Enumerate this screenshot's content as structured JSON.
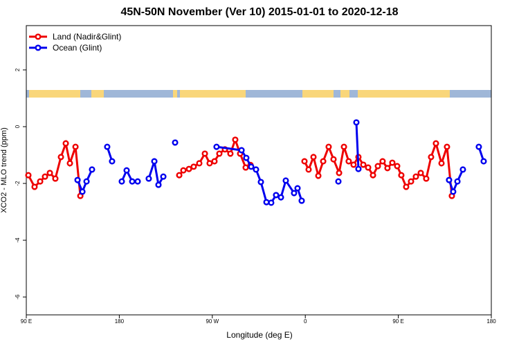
{
  "chart_data": {
    "type": "line",
    "title": "45N-50N November (Ver 10)   2015-01-01 to 2020-12-18",
    "x_label": "Longitude (deg E)",
    "y_label": "XCO2 - MLO trend (ppm)",
    "xlim": [
      90,
      540
    ],
    "xticks": [
      {
        "value": 90,
        "label": "90 E"
      },
      180,
      {
        "value": 270,
        "label": "90 W"
      },
      {
        "value": 360,
        "label": "0"
      },
      {
        "value": 450,
        "label": "90 E"
      },
      {
        "value": 540,
        "label": "180"
      }
    ],
    "ylim": [
      -6.63,
      3.56
    ],
    "yticks": [
      -6,
      -4,
      -2,
      0,
      2
    ],
    "legend": "top-left",
    "series": [
      {
        "name": "Land (Nadir&Glint)",
        "color": "#ee0000",
        "x": [
          92.0,
          98.0,
          103.4,
          108.1,
          112.8,
          118.1,
          123.5,
          128.2,
          132.2,
          137.6,
          142.3,
          null,
          238.0,
          242.0,
          247.4,
          252.0,
          257.4,
          262.8,
          267.4,
          272.1,
          276.8,
          282.2,
          287.5,
          292.2,
          296.9,
          302.3,
          307.0,
          null,
          359.2,
          363.2,
          367.9,
          372.6,
          377.3,
          382.6,
          387.3,
          392.7,
          397.4,
          402.0,
          406.7,
          411.4,
          416.1,
          420.8,
          425.5,
          430.2,
          434.8,
          439.5,
          444.2,
          448.9,
          452.9,
          457.6,
          462.3,
          467.0,
          471.7,
          477.0,
          481.7,
          486.4,
          491.8,
          497.1,
          501.8
        ],
        "values": [
          -1.71,
          -2.12,
          -1.93,
          -1.76,
          -1.63,
          -1.83,
          -1.07,
          -0.59,
          -1.29,
          -0.71,
          -2.44,
          null,
          -1.71,
          -1.54,
          -1.49,
          -1.41,
          -1.29,
          -0.95,
          -1.29,
          -1.22,
          -0.95,
          -0.8,
          -0.95,
          -0.46,
          -0.95,
          -1.44,
          -1.35,
          null,
          -1.22,
          -1.51,
          -1.07,
          -1.73,
          -1.22,
          -0.71,
          -1.15,
          -1.63,
          -0.71,
          -1.22,
          -1.34,
          -1.07,
          -1.34,
          -1.44,
          -1.71,
          -1.39,
          -1.22,
          -1.46,
          -1.27,
          -1.39,
          -1.71,
          -2.12,
          -1.93,
          -1.76,
          -1.63,
          -1.83,
          -1.07,
          -0.59,
          -1.29,
          -0.71,
          -2.44
        ]
      },
      {
        "name": "Ocean (Glint)",
        "color": "#0000ee",
        "x": [
          139.6,
          144.3,
          148.3,
          153.6,
          null,
          168.3,
          173.0,
          null,
          182.4,
          187.1,
          192.5,
          197.8,
          null,
          208.5,
          213.9,
          217.9,
          222.6,
          null,
          234.0,
          null,
          274.1,
          298.3,
          302.9,
          307.6,
          312.3,
          317.0,
          322.4,
          327.0,
          331.7,
          336.4,
          341.1,
          349.1,
          352.5,
          356.5,
          null,
          392.0,
          null,
          409.4,
          411.4,
          null,
          499.1,
          503.1,
          507.2,
          512.5,
          null,
          527.9,
          532.6
        ],
        "values": [
          -1.88,
          -2.29,
          -1.93,
          -1.51,
          null,
          -0.71,
          -1.22,
          null,
          -1.93,
          -1.54,
          -1.93,
          -1.93,
          null,
          -1.83,
          -1.22,
          -2.05,
          -1.76,
          null,
          -0.56,
          null,
          -0.71,
          -0.83,
          -1.1,
          -1.41,
          -1.51,
          -1.95,
          -2.66,
          -2.68,
          -2.41,
          -2.49,
          -1.9,
          -2.34,
          -2.17,
          -2.61,
          null,
          -1.93,
          null,
          0.15,
          -1.49,
          null,
          -1.88,
          -2.29,
          -1.93,
          -1.51,
          null,
          -0.71,
          -1.22
        ]
      }
    ]
  }
}
